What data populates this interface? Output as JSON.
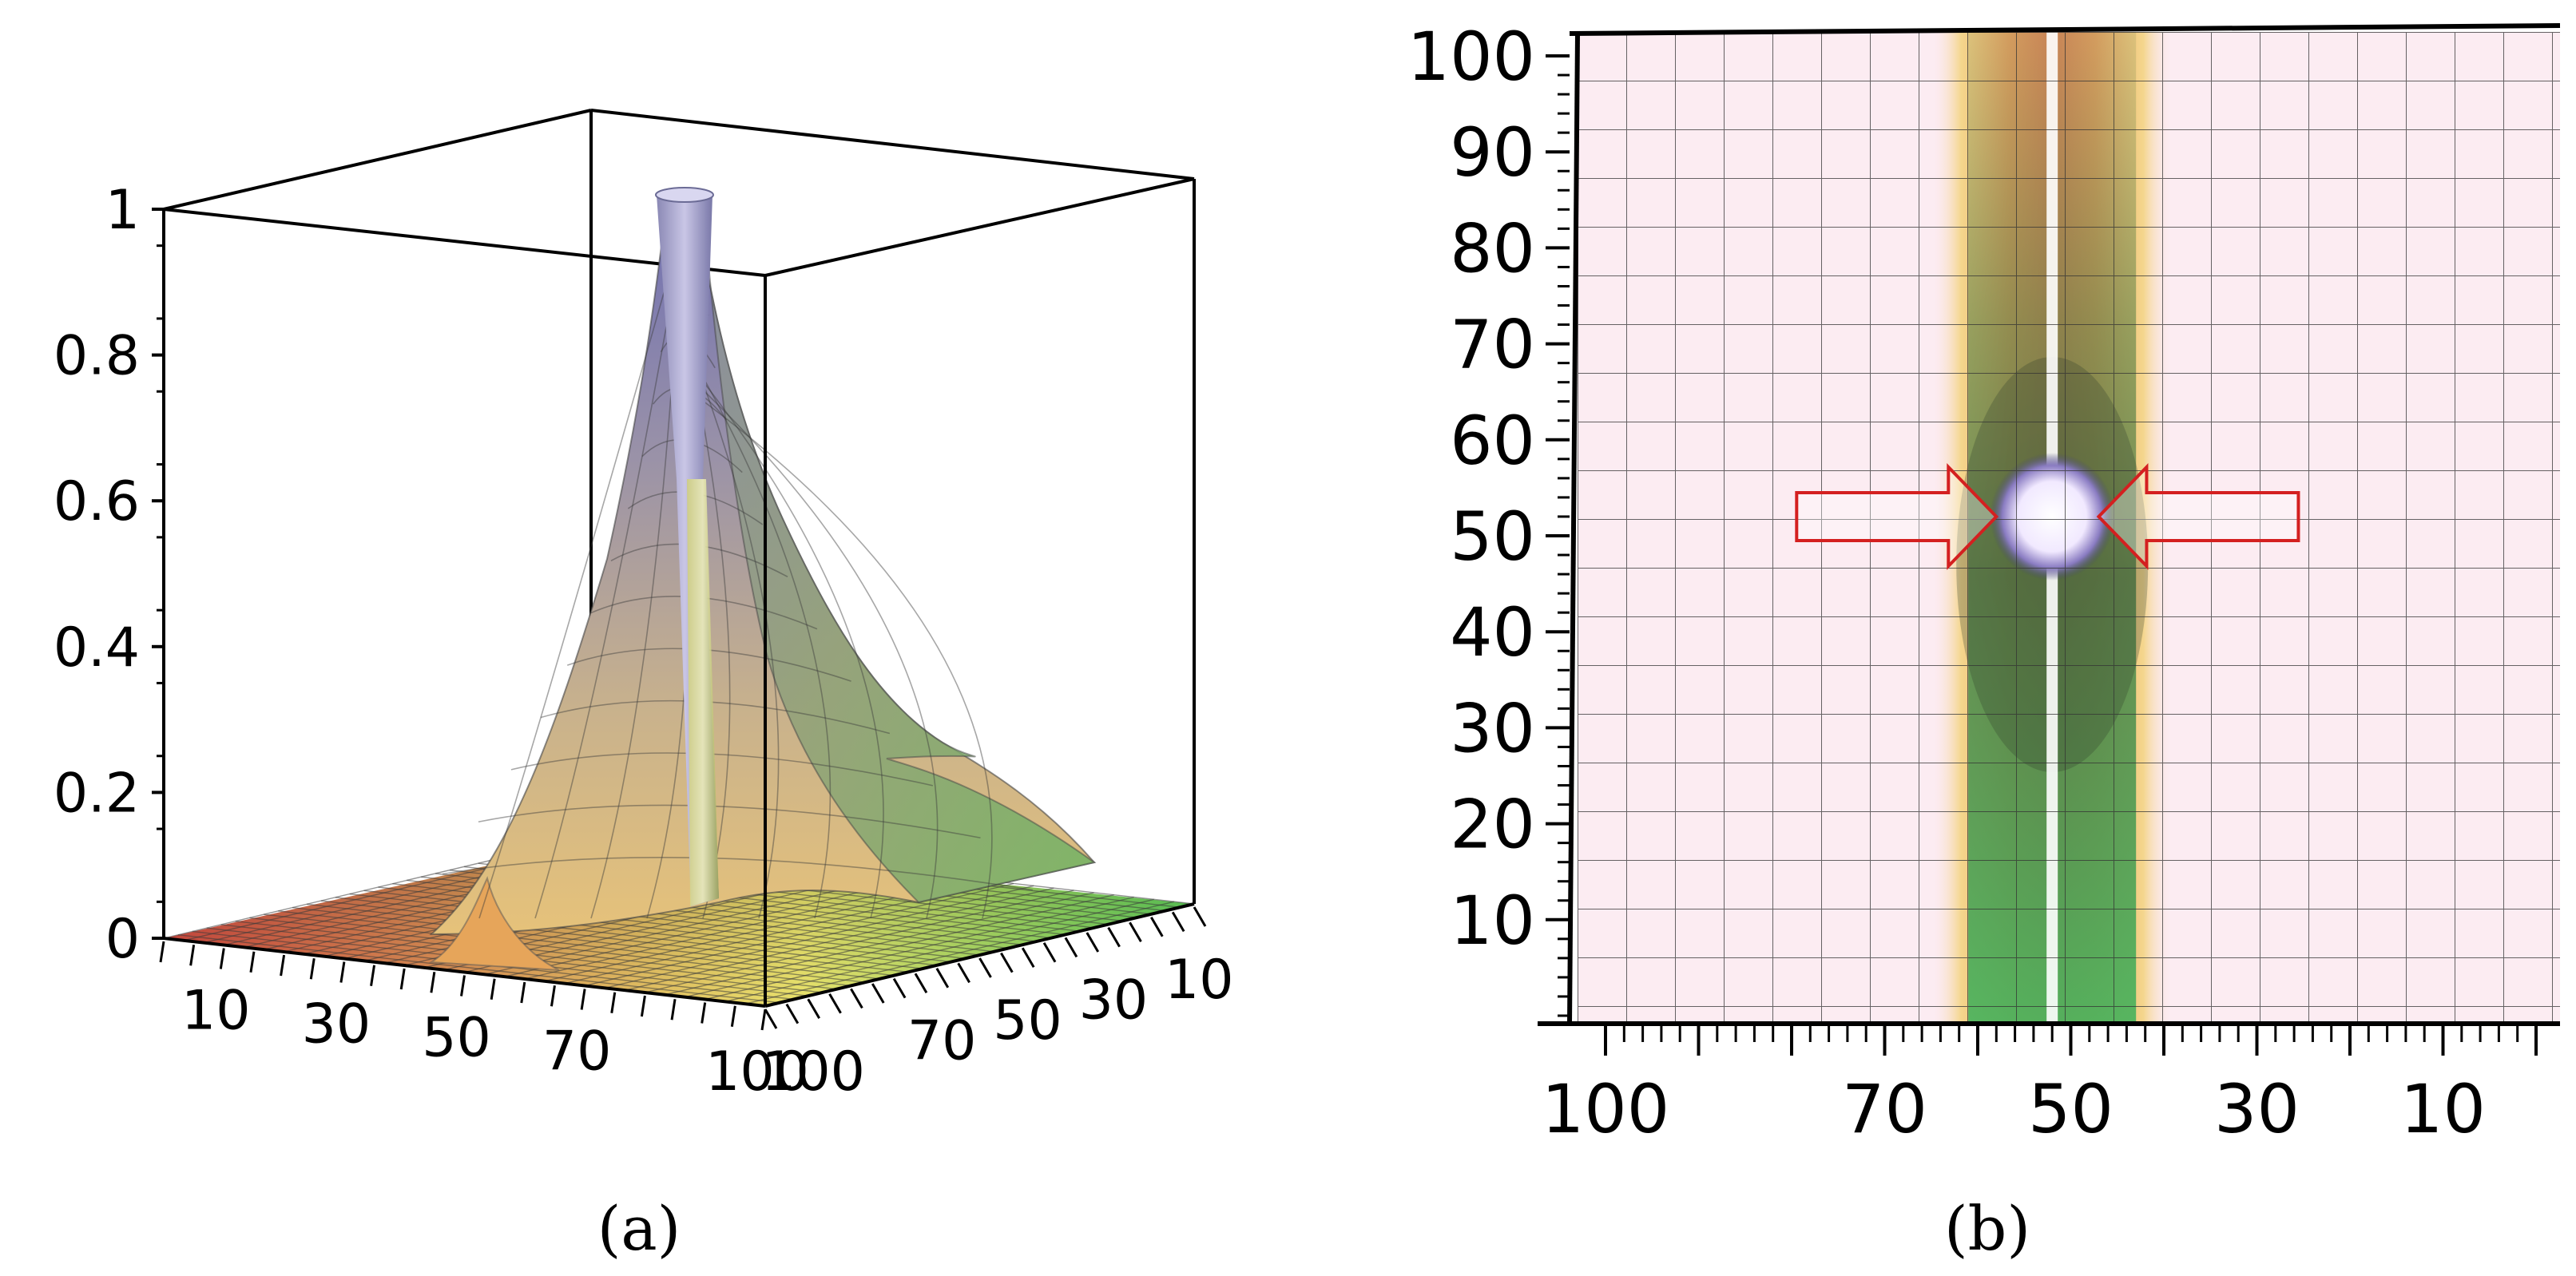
{
  "chart_data": [
    {
      "type": "surface3d",
      "panel": "a",
      "caption": "(a)",
      "zlim": [
        0,
        1
      ],
      "z_ticks": [
        "0",
        "0.2",
        "0.4",
        "0.6",
        "0.8",
        "1"
      ],
      "x_ticks": [
        "10",
        "30",
        "50",
        "70",
        "100"
      ],
      "y_ticks": [
        "100",
        "70",
        "50",
        "30",
        "10"
      ],
      "x_range": [
        0,
        100
      ],
      "y_range": [
        0,
        100
      ],
      "peak": {
        "x": 50,
        "y": 50,
        "z": 1.0
      },
      "secondary_ridge": {
        "x": 50,
        "z": 0.2
      },
      "grid": true,
      "colors": {
        "low": "#d9534f",
        "mid": "#e8e06a",
        "right": "#5fc95f",
        "peak": "#6f6fb0"
      }
    },
    {
      "type": "heatmap",
      "panel": "b",
      "caption": "(b)",
      "x_ticks": [
        "100",
        "70",
        "50",
        "30",
        "10"
      ],
      "y_ticks": [
        "10",
        "20",
        "30",
        "40",
        "50",
        "60",
        "70",
        "80",
        "90",
        "100"
      ],
      "x_range": [
        0,
        100
      ],
      "y_range": [
        0,
        100
      ],
      "x_reversed": true,
      "hotspot": {
        "x": 52,
        "y": 52
      },
      "band_center_x": 52,
      "grid": true,
      "annotations": [
        {
          "type": "arrow",
          "direction": "right",
          "target_x": 58,
          "target_y": 52,
          "color": "#d42020"
        },
        {
          "type": "arrow",
          "direction": "left",
          "target_x": 47,
          "target_y": 52,
          "color": "#d42020"
        }
      ],
      "colors": {
        "background": "#fbe6ee",
        "band_outer": "#f0b060",
        "band_inner": "#3f9a55",
        "hotspot": "#f6f0ff"
      }
    }
  ]
}
